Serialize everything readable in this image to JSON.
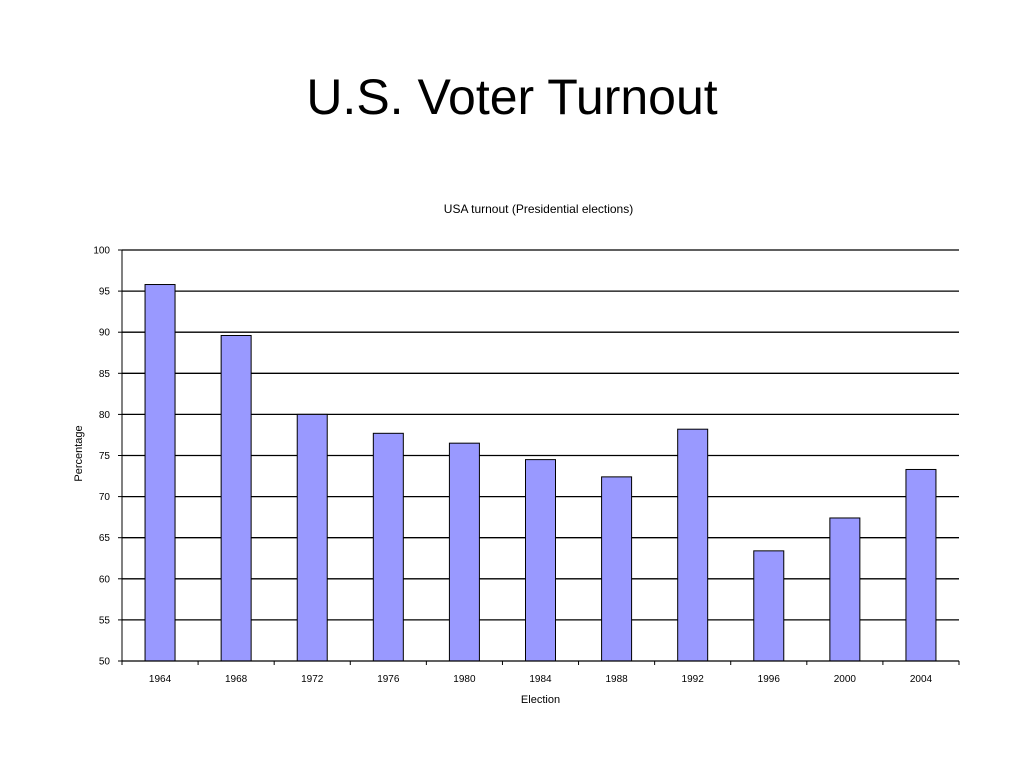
{
  "slide": {
    "title": "U.S. Voter Turnout"
  },
  "chart_data": {
    "type": "bar",
    "title": "USA turnout (Presidential elections)",
    "xlabel": "Election",
    "ylabel": "Percentage",
    "categories": [
      "1964",
      "1968",
      "1972",
      "1976",
      "1980",
      "1984",
      "1988",
      "1992",
      "1996",
      "2000",
      "2004"
    ],
    "values": [
      95.8,
      89.6,
      80.0,
      77.7,
      76.5,
      74.5,
      72.4,
      78.2,
      63.4,
      67.4,
      73.3
    ],
    "ylim": [
      50,
      100
    ],
    "yticks": [
      50,
      55,
      60,
      65,
      70,
      75,
      80,
      85,
      90,
      95,
      100
    ],
    "grid": true,
    "legend": "none",
    "bar_color": "#9999ff",
    "bar_stroke": "#000000"
  }
}
